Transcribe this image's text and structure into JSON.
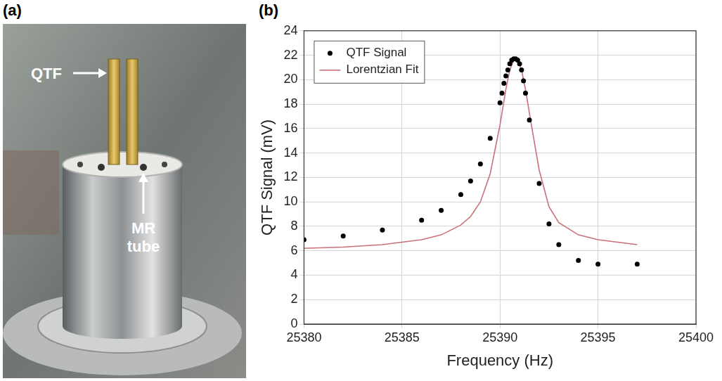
{
  "photo": {
    "panel_label": "(a)",
    "labels": {
      "qtf": "QTF",
      "tube": "MR tube"
    }
  },
  "chart_data": {
    "type": "scatter",
    "panel_label": "(b)",
    "x_label": "Frequency (Hz)",
    "y_label": "QTF Signal (mV)",
    "xlim": [
      25380,
      25400
    ],
    "xticks": [
      25380,
      25385,
      25390,
      25395,
      25400
    ],
    "ylim": [
      0,
      24
    ],
    "yticks": [
      0,
      2,
      4,
      6,
      8,
      10,
      12,
      14,
      16,
      18,
      20,
      22,
      24
    ],
    "grid": true,
    "legend": "upper left",
    "series": [
      {
        "name": "QTF Signal",
        "type": "scatter",
        "color": "#000000",
        "marker": "circle",
        "x": [
          25380,
          25382,
          25384,
          25386,
          25387,
          25388,
          25388.5,
          25389,
          25389.5,
          25390,
          25390.1,
          25390.2,
          25390.3,
          25390.4,
          25390.5,
          25390.6,
          25390.7,
          25390.8,
          25390.9,
          25391.0,
          25391.1,
          25391.2,
          25391.3,
          25391.5,
          25392,
          25392.5,
          25393,
          25394,
          25395,
          25397
        ],
        "values": [
          6.9,
          7.2,
          7.7,
          8.5,
          9.3,
          10.6,
          11.7,
          13.1,
          15.2,
          18.1,
          18.9,
          19.7,
          20.3,
          20.8,
          21.3,
          21.6,
          21.7,
          21.7,
          21.6,
          21.3,
          20.8,
          19.9,
          18.9,
          16.7,
          11.5,
          8.2,
          6.5,
          5.2,
          4.9,
          4.9
        ]
      },
      {
        "name": "Lorentzian Fit",
        "type": "line",
        "color": "#c9707a",
        "line_style": "solid",
        "x": [
          25380,
          25382,
          25384,
          25386,
          25387,
          25388,
          25388.5,
          25389,
          25389.5,
          25390,
          25390.3,
          25390.5,
          25390.7,
          25390.8,
          25390.9,
          25391.1,
          25391.3,
          25391.6,
          25392,
          25392.5,
          25393,
          25394,
          25395,
          25396,
          25397
        ],
        "values": [
          6.2,
          6.3,
          6.5,
          6.9,
          7.3,
          8.1,
          8.8,
          10.0,
          12.3,
          16.3,
          19.2,
          20.8,
          21.6,
          21.7,
          21.6,
          20.8,
          19.2,
          16.3,
          12.6,
          9.6,
          8.3,
          7.3,
          6.9,
          6.7,
          6.5
        ]
      }
    ]
  }
}
